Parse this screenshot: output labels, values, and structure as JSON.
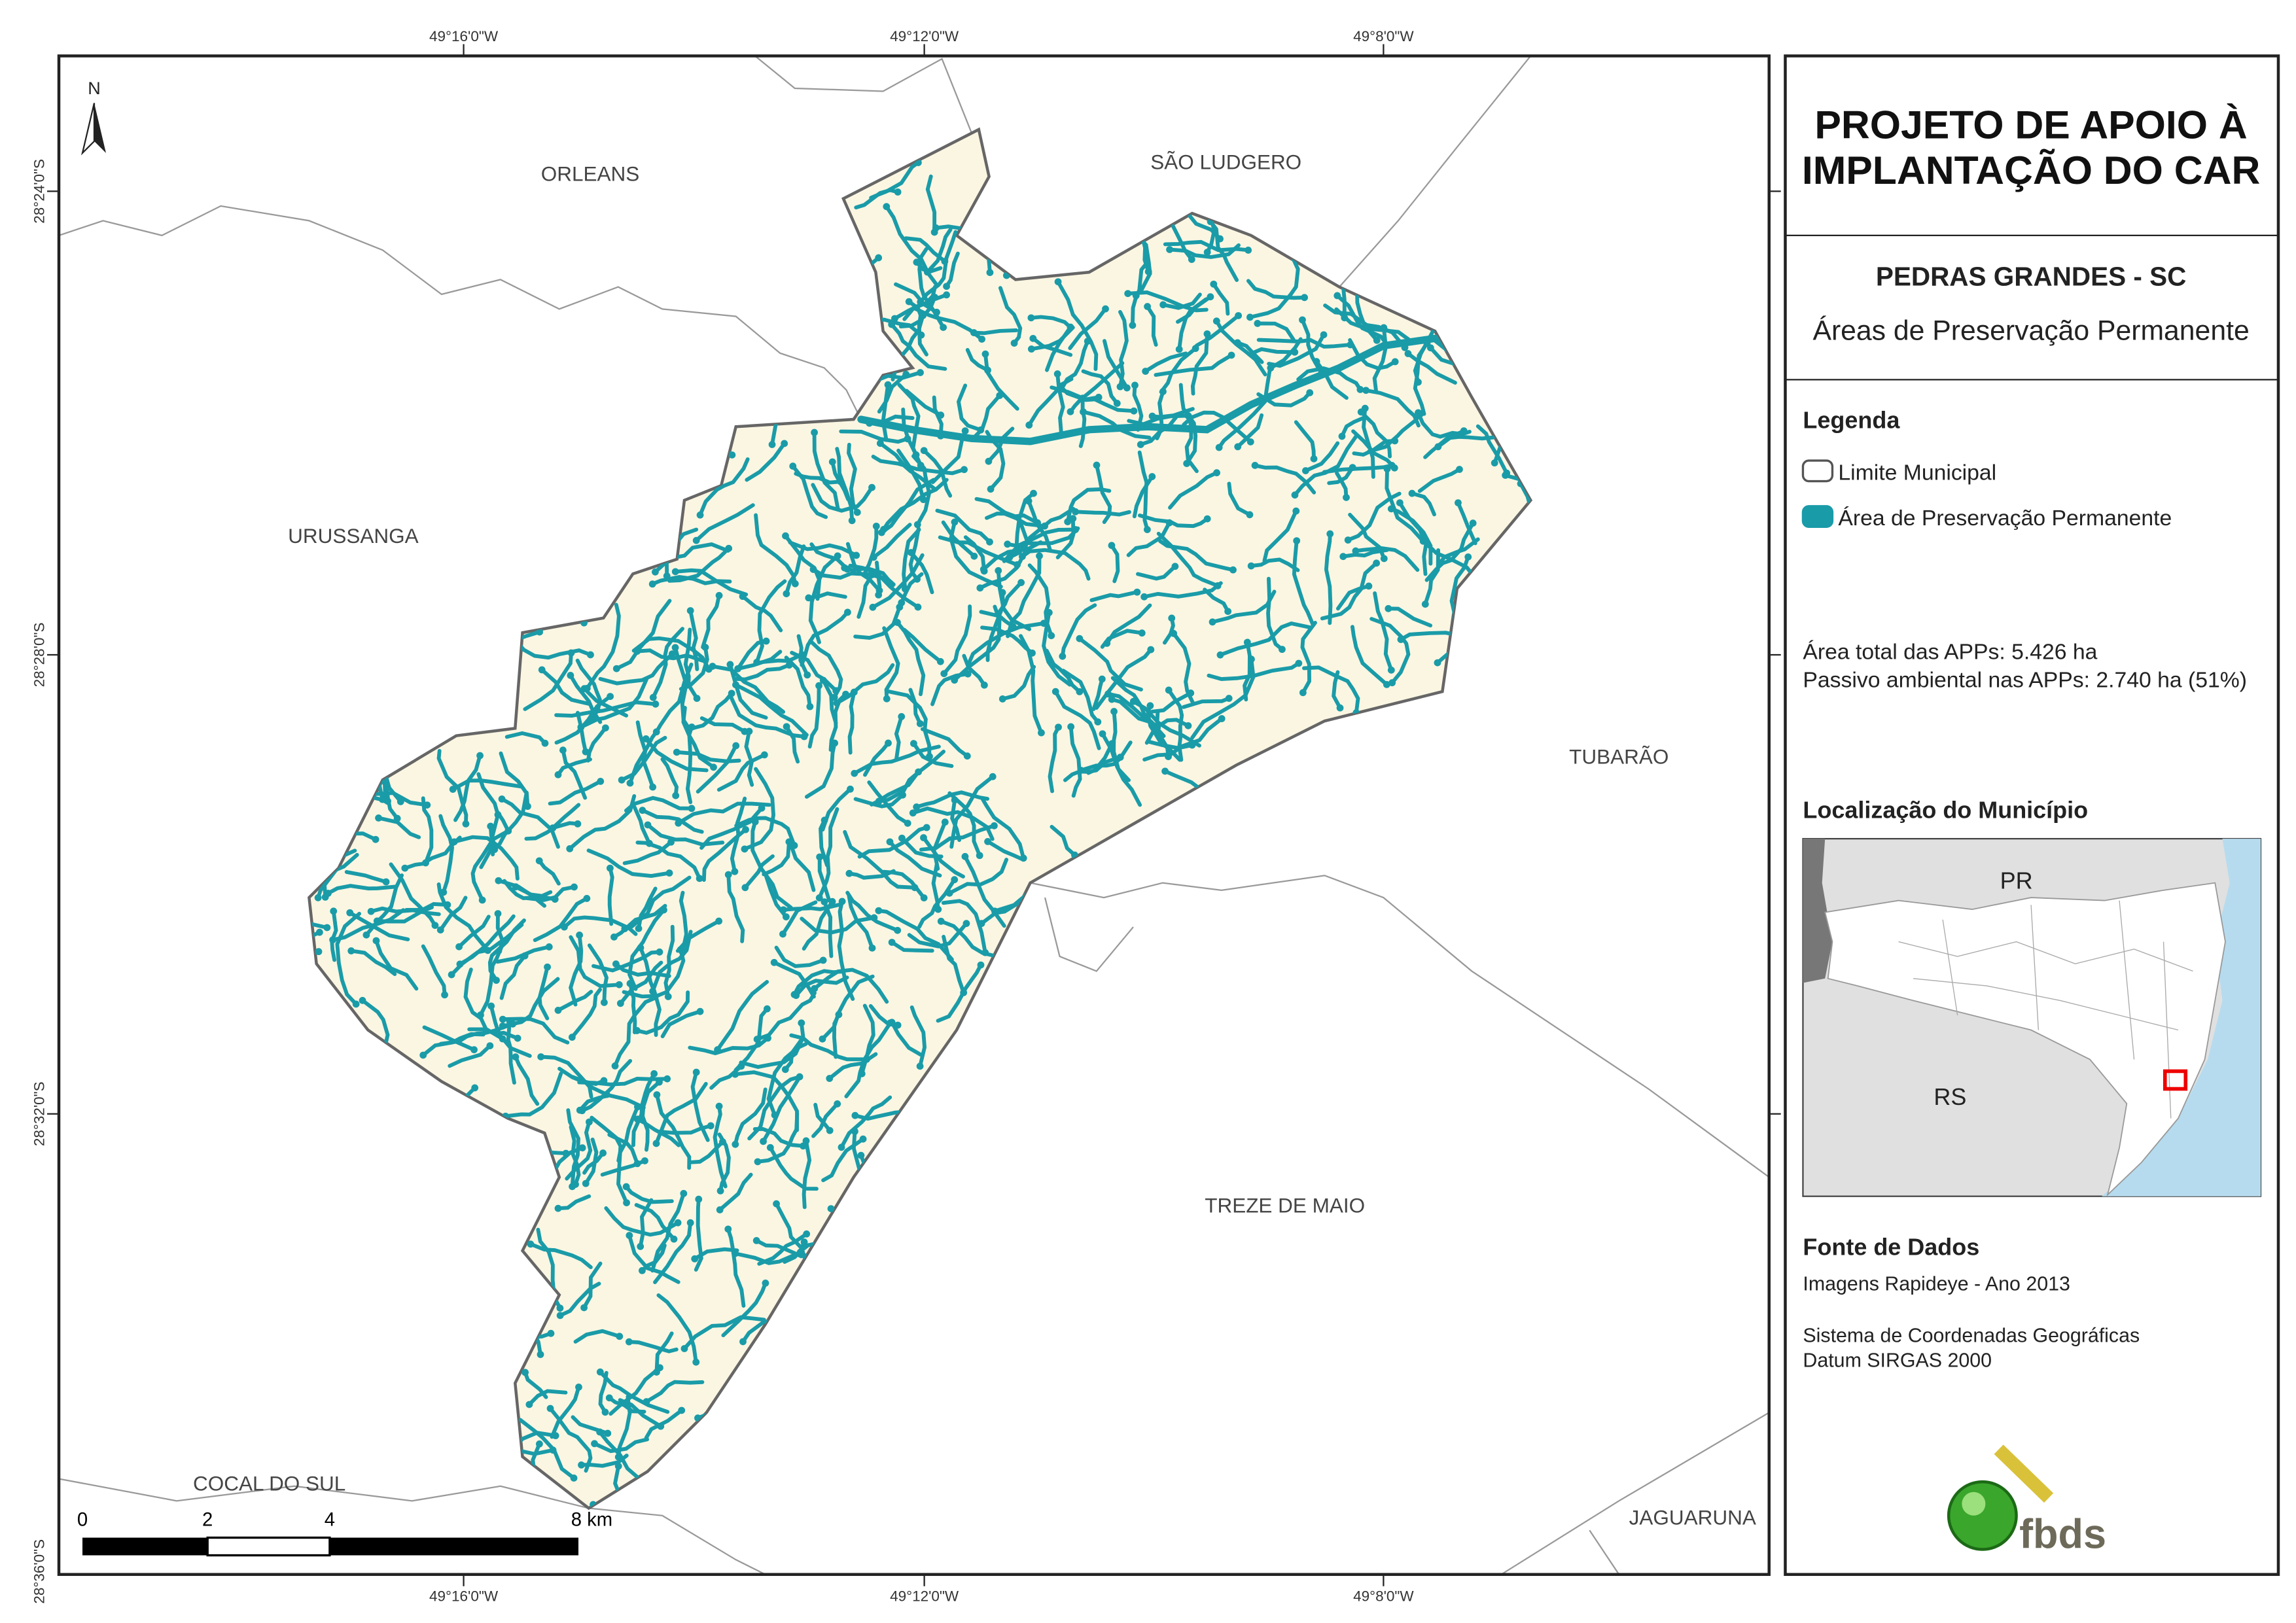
{
  "title": [
    "PROJETO DE APOIO À",
    "IMPLANTAÇÃO DO CAR"
  ],
  "municipality": "PEDRAS GRANDES - SC",
  "subtitle": "Áreas de Preservação Permanente",
  "legend": {
    "title": "Legenda",
    "items": [
      "Limite Municipal",
      "Área de Preservação Permanente"
    ]
  },
  "stats": [
    "Área total das APPs: 5.426 ha",
    "Passivo ambiental nas APPs: 2.740 ha (51%)"
  ],
  "location": {
    "title": "Localização do Município",
    "labels": [
      "PR",
      "RS"
    ]
  },
  "source": {
    "title": "Fonte de Dados",
    "lines": [
      "Imagens Rapideye - Ano 2013",
      "Sistema de Coordenadas Geográficas",
      "Datum SIRGAS 2000"
    ]
  },
  "logo": "fbds",
  "north": "N",
  "places": [
    "ORLEANS",
    "SÃO LUDGERO",
    "URUSSANGA",
    "TUBARÃO",
    "TREZE DE MAIO",
    "COCAL DO SUL",
    "JAGUARUNA"
  ],
  "lon_labels": [
    "49°16'0\"W",
    "49°12'0\"W",
    "49°8'0\"W"
  ],
  "lat_labels": [
    "28°24'0\"S",
    "28°28'0\"S",
    "28°32'0\"S",
    "28°36'0\"S"
  ],
  "scale_labels": [
    "0",
    "2",
    "4",
    "8 km"
  ]
}
